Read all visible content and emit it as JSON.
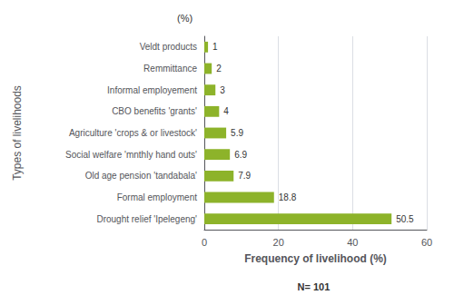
{
  "chart_data": {
    "type": "bar",
    "orientation": "horizontal",
    "categories": [
      "Drought relief 'Ipelegeng'",
      "Formal employment",
      "Old age pension 'tandabala'",
      "Social welfare 'mnthly hand outs'",
      "Agriculture 'crops & or livestock'",
      "CBO benefits 'grants'",
      "Informal employement",
      "Remmittance",
      "Veldt products"
    ],
    "values": [
      50.5,
      18.8,
      7.9,
      6.9,
      5.9,
      4,
      3,
      2,
      1
    ],
    "color": "#8db32a",
    "xlabel": "Frequency of livelihood (%)",
    "ylabel": "Types of livelihoods",
    "annotations": [
      "(%)",
      "N= 101"
    ],
    "xlim": [
      0,
      60
    ],
    "xticks": [
      0,
      20,
      40,
      60
    ],
    "grid": true,
    "data_labels": true
  }
}
